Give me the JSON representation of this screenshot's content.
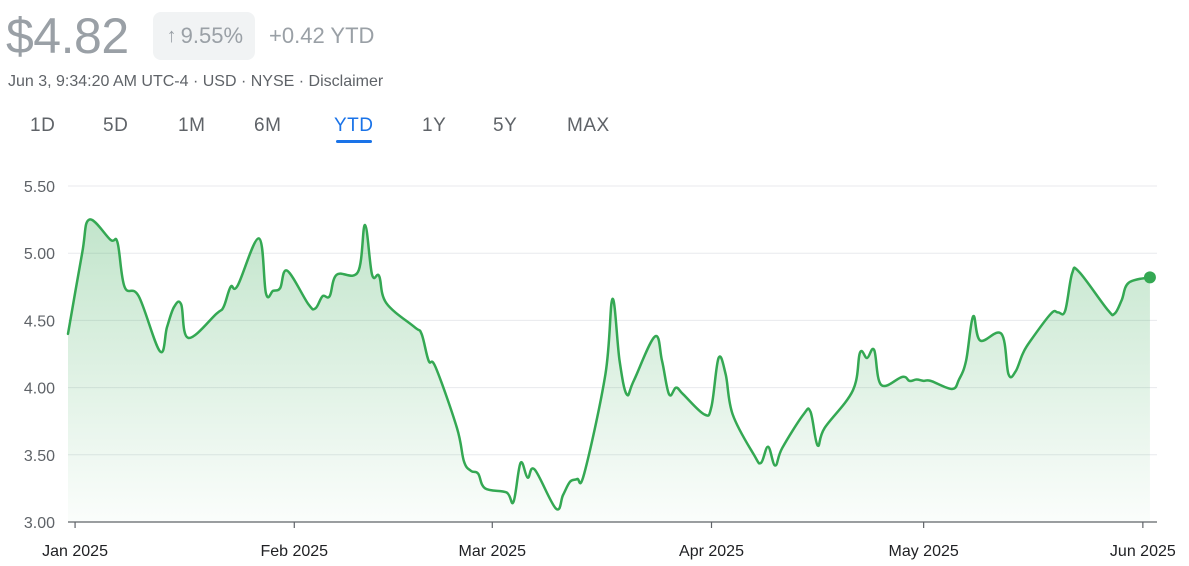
{
  "header": {
    "price": "$4.82",
    "change_arrow": "↑",
    "change_pct": "9.55%",
    "change_abs": "+0.42 YTD"
  },
  "meta": {
    "timestamp": "Jun 3, 9:34:20 AM UTC-4",
    "sep1": " · ",
    "currency": "USD",
    "sep2": " · ",
    "exchange": "NYSE",
    "sep3": " · ",
    "disclaimer": "Disclaimer"
  },
  "tabs": [
    {
      "label": "1D",
      "active": false
    },
    {
      "label": "5D",
      "active": false
    },
    {
      "label": "1M",
      "active": false
    },
    {
      "label": "6M",
      "active": false
    },
    {
      "label": "YTD",
      "active": true
    },
    {
      "label": "1Y",
      "active": false
    },
    {
      "label": "5Y",
      "active": false
    },
    {
      "label": "MAX",
      "active": false
    }
  ],
  "colors": {
    "line": "#34a853",
    "area_top": "#34a853",
    "grid": "#e8eaed",
    "axis": "#5f6368",
    "accent": "#1a73e8"
  },
  "chart_data": {
    "type": "area",
    "ylim": [
      3.0,
      5.5
    ],
    "yticks": [
      "5.50",
      "5.00",
      "4.50",
      "4.00",
      "3.50",
      "3.00"
    ],
    "ytick_values": [
      5.5,
      5.0,
      4.5,
      4.0,
      3.5,
      3.0
    ],
    "xlabels": [
      "Jan 2025",
      "Feb 2025",
      "Mar 2025",
      "Apr 2025",
      "May 2025",
      "Jun 2025"
    ],
    "xtick_dates": [
      "2025-01-01",
      "2025-02-01",
      "2025-03-01",
      "2025-04-01",
      "2025-05-01",
      "2025-06-01"
    ],
    "x_start": "2024-12-31",
    "x_end": "2025-06-03",
    "series": [
      {
        "values": [
          [
            "2024-12-31",
            4.4
          ],
          [
            "2025-01-02",
            5.0
          ],
          [
            "2025-01-03",
            5.25
          ],
          [
            "2025-01-06",
            5.1
          ],
          [
            "2025-01-07",
            5.08
          ],
          [
            "2025-01-08",
            4.75
          ],
          [
            "2025-01-10",
            4.68
          ],
          [
            "2025-01-13",
            4.27
          ],
          [
            "2025-01-14",
            4.45
          ],
          [
            "2025-01-15",
            4.6
          ],
          [
            "2025-01-16",
            4.62
          ],
          [
            "2025-01-17",
            4.37
          ],
          [
            "2025-01-21",
            4.55
          ],
          [
            "2025-01-22",
            4.6
          ],
          [
            "2025-01-23",
            4.75
          ],
          [
            "2025-01-24",
            4.76
          ],
          [
            "2025-01-27",
            5.11
          ],
          [
            "2025-01-28",
            4.7
          ],
          [
            "2025-01-29",
            4.72
          ],
          [
            "2025-01-30",
            4.74
          ],
          [
            "2025-01-31",
            4.87
          ],
          [
            "2025-02-03",
            4.62
          ],
          [
            "2025-02-04",
            4.59
          ],
          [
            "2025-02-05",
            4.68
          ],
          [
            "2025-02-06",
            4.68
          ],
          [
            "2025-02-07",
            4.84
          ],
          [
            "2025-02-10",
            4.86
          ],
          [
            "2025-02-11",
            5.21
          ],
          [
            "2025-02-12",
            4.84
          ],
          [
            "2025-02-13",
            4.83
          ],
          [
            "2025-02-14",
            4.63
          ],
          [
            "2025-02-18",
            4.45
          ],
          [
            "2025-02-19",
            4.4
          ],
          [
            "2025-02-20",
            4.2
          ],
          [
            "2025-02-21",
            4.15
          ],
          [
            "2025-02-24",
            3.7
          ],
          [
            "2025-02-25",
            3.45
          ],
          [
            "2025-02-26",
            3.38
          ],
          [
            "2025-02-27",
            3.36
          ],
          [
            "2025-02-28",
            3.25
          ],
          [
            "2025-03-03",
            3.22
          ],
          [
            "2025-03-04",
            3.15
          ],
          [
            "2025-03-05",
            3.44
          ],
          [
            "2025-03-06",
            3.33
          ],
          [
            "2025-03-07",
            3.39
          ],
          [
            "2025-03-10",
            3.1
          ],
          [
            "2025-03-11",
            3.2
          ],
          [
            "2025-03-12",
            3.3
          ],
          [
            "2025-03-13",
            3.32
          ],
          [
            "2025-03-14",
            3.36
          ],
          [
            "2025-03-17",
            4.1
          ],
          [
            "2025-03-18",
            4.66
          ],
          [
            "2025-03-19",
            4.2
          ],
          [
            "2025-03-20",
            3.95
          ],
          [
            "2025-03-21",
            4.05
          ],
          [
            "2025-03-24",
            4.38
          ],
          [
            "2025-03-25",
            4.2
          ],
          [
            "2025-03-26",
            3.95
          ],
          [
            "2025-03-27",
            4.0
          ],
          [
            "2025-03-28",
            3.95
          ],
          [
            "2025-03-31",
            3.8
          ],
          [
            "2025-04-01",
            3.86
          ],
          [
            "2025-04-02",
            4.22
          ],
          [
            "2025-04-03",
            4.1
          ],
          [
            "2025-04-04",
            3.8
          ],
          [
            "2025-04-07",
            3.5
          ],
          [
            "2025-04-08",
            3.44
          ],
          [
            "2025-04-09",
            3.56
          ],
          [
            "2025-04-10",
            3.42
          ],
          [
            "2025-04-11",
            3.55
          ],
          [
            "2025-04-14",
            3.8
          ],
          [
            "2025-04-15",
            3.82
          ],
          [
            "2025-04-16",
            3.57
          ],
          [
            "2025-04-17",
            3.7
          ],
          [
            "2025-04-21",
            3.98
          ],
          [
            "2025-04-22",
            4.26
          ],
          [
            "2025-04-23",
            4.22
          ],
          [
            "2025-04-24",
            4.28
          ],
          [
            "2025-04-25",
            4.02
          ],
          [
            "2025-04-28",
            4.08
          ],
          [
            "2025-04-29",
            4.05
          ],
          [
            "2025-04-30",
            4.06
          ],
          [
            "2025-05-01",
            4.05
          ],
          [
            "2025-05-02",
            4.05
          ],
          [
            "2025-05-05",
            3.99
          ],
          [
            "2025-05-06",
            4.06
          ],
          [
            "2025-05-07",
            4.2
          ],
          [
            "2025-05-08",
            4.53
          ],
          [
            "2025-05-09",
            4.35
          ],
          [
            "2025-05-12",
            4.4
          ],
          [
            "2025-05-13",
            4.1
          ],
          [
            "2025-05-14",
            4.12
          ],
          [
            "2025-05-15",
            4.25
          ],
          [
            "2025-05-16",
            4.34
          ],
          [
            "2025-05-19",
            4.55
          ],
          [
            "2025-05-20",
            4.56
          ],
          [
            "2025-05-21",
            4.57
          ],
          [
            "2025-05-22",
            4.85
          ],
          [
            "2025-05-23",
            4.86
          ],
          [
            "2025-05-27",
            4.58
          ],
          [
            "2025-05-28",
            4.55
          ],
          [
            "2025-05-29",
            4.65
          ],
          [
            "2025-05-30",
            4.78
          ],
          [
            "2025-06-02",
            4.82
          ]
        ]
      }
    ],
    "last_value": 4.82,
    "grid": true,
    "legend": "none"
  }
}
